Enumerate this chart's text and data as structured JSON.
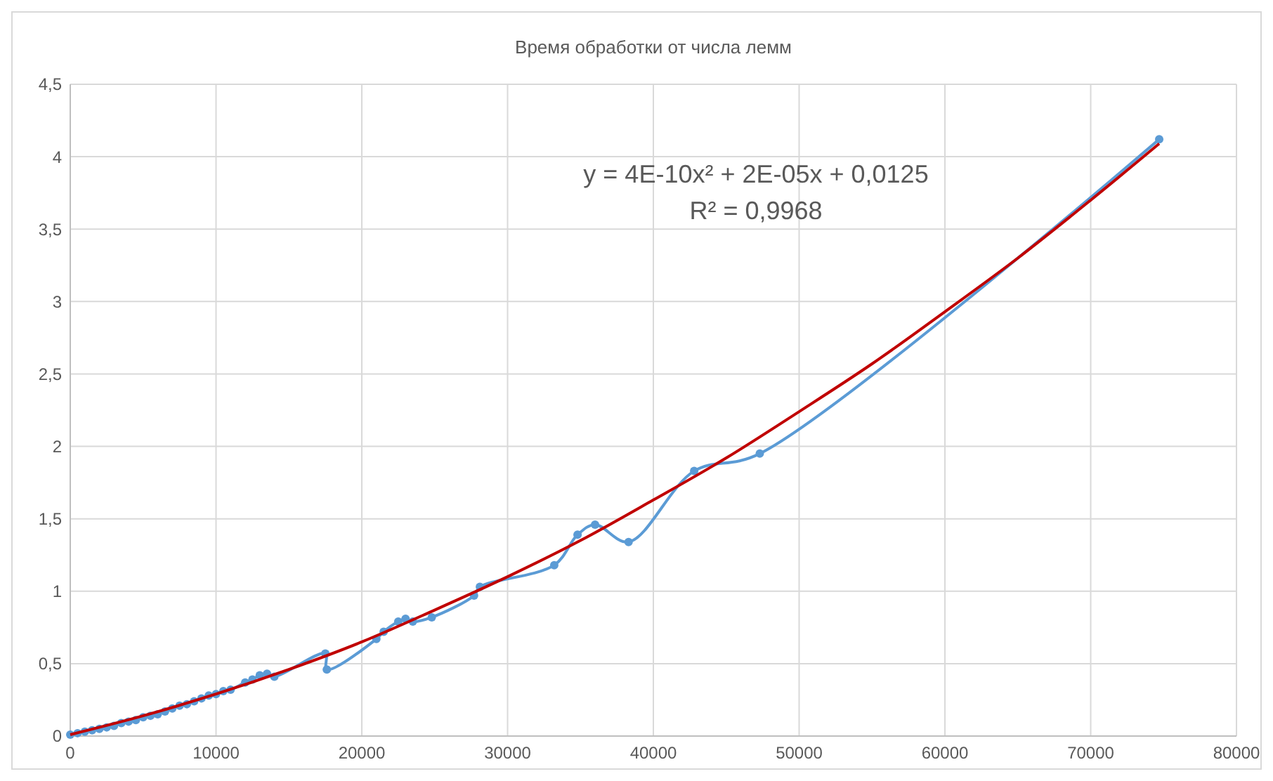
{
  "chart_data": {
    "type": "line",
    "title": "Время обработки от числа лемм",
    "grid": true,
    "marker": "circle",
    "xlim": [
      0,
      80000
    ],
    "xticks": [
      0,
      10000,
      20000,
      30000,
      40000,
      50000,
      60000,
      70000,
      80000
    ],
    "ylim": [
      0,
      4.5
    ],
    "yticks": [
      0,
      {
        "value": 0.5,
        "label": "0,5"
      },
      1,
      {
        "value": 1.5,
        "label": "1,5"
      },
      2,
      {
        "value": 2.5,
        "label": "2,5"
      },
      3,
      {
        "value": 3.5,
        "label": "3,5"
      },
      4,
      {
        "value": 4.5,
        "label": "4,5"
      }
    ],
    "annotations": [
      "y = 4E-10x² + 2E-05x + 0,0125",
      "R² = 0,9968"
    ],
    "series": [
      {
        "color": "#5b9bd5",
        "x": [
          0,
          500,
          1000,
          1500,
          2000,
          2500,
          3000,
          3500,
          4000,
          4500,
          5000,
          5500,
          6000,
          6500,
          7000,
          7500,
          8000,
          8500,
          9000,
          9500,
          10000,
          10500,
          11000,
          12000,
          12500,
          13000,
          13500,
          14000,
          17500,
          17600,
          21000,
          21500,
          22500,
          23000,
          23500,
          24800,
          27700,
          28100,
          33200,
          34800,
          36000,
          38300,
          42800,
          47300,
          74700
        ],
        "values": [
          0.01,
          0.02,
          0.03,
          0.04,
          0.05,
          0.06,
          0.07,
          0.09,
          0.1,
          0.11,
          0.13,
          0.14,
          0.15,
          0.17,
          0.19,
          0.21,
          0.22,
          0.24,
          0.26,
          0.28,
          0.29,
          0.31,
          0.32,
          0.37,
          0.39,
          0.42,
          0.43,
          0.41,
          0.57,
          0.46,
          0.67,
          0.72,
          0.79,
          0.81,
          0.79,
          0.82,
          0.97,
          1.03,
          1.18,
          1.39,
          1.46,
          1.34,
          1.83,
          1.95,
          4.12
        ]
      },
      {
        "color": "#c00000",
        "marker": "none",
        "x": [
          0,
          5000,
          10000,
          15000,
          20000,
          25000,
          30000,
          35000,
          40000,
          45000,
          50000,
          55000,
          60000,
          65000,
          70000,
          74700
        ],
        "values": [
          0.01,
          0.14,
          0.29,
          0.46,
          0.65,
          0.87,
          1.1,
          1.35,
          1.63,
          1.92,
          2.24,
          2.57,
          2.93,
          3.3,
          3.7,
          4.09
        ]
      }
    ]
  }
}
